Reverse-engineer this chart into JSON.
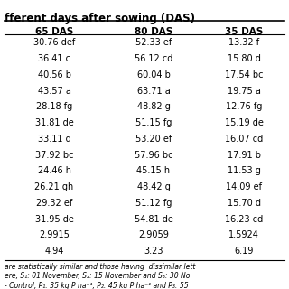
{
  "title": "fferent days after sowing (DAS)",
  "headers": [
    "65 DAS",
    "80 DAS",
    "35 DAS"
  ],
  "rows": [
    [
      "30.76 def",
      "52.33 ef",
      "13.32 f"
    ],
    [
      "36.41 c",
      "56.12 cd",
      "15.80 d"
    ],
    [
      "40.56 b",
      "60.04 b",
      "17.54 bc"
    ],
    [
      "43.57 a",
      "63.71 a",
      "19.75 a"
    ],
    [
      "28.18 fg",
      "48.82 g",
      "12.76 fg"
    ],
    [
      "31.81 de",
      "51.15 fg",
      "15.19 de"
    ],
    [
      "33.11 d",
      "53.20 ef",
      "16.07 cd"
    ],
    [
      "37.92 bc",
      "57.96 bc",
      "17.91 b"
    ],
    [
      "24.46 h",
      "45.15 h",
      "11.53 g"
    ],
    [
      "26.21 gh",
      "48.42 g",
      "14.09 ef"
    ],
    [
      "29.32 ef",
      "51.12 fg",
      "15.70 d"
    ],
    [
      "31.95 de",
      "54.81 de",
      "16.23 cd"
    ],
    [
      "2.9915",
      "2.9059",
      "1.5924"
    ],
    [
      "4.94",
      "3.23",
      "6.19"
    ]
  ],
  "footnotes": [
    "are statistically similar and those having  dissimilar lett",
    "ere, S₁: 01 November, S₂: 15 November and S₃: 30 No",
    "- Control, P₁: 35 kg P ha⁻¹, P₂: 45 kg P ha⁻¹ and P₃: 55"
  ],
  "bg_color": "#ffffff",
  "header_bg": "#ffffff",
  "text_color": "#000000",
  "font_size": 7.0,
  "header_font_size": 7.5,
  "title_font_size": 8.5
}
